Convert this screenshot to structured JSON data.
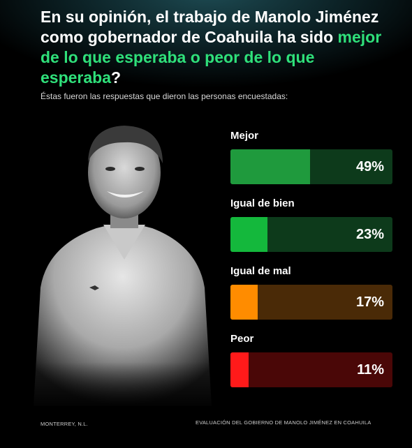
{
  "headline": {
    "part1": "En su opinión, el trabajo de Manolo Jiménez como gobernador de Coahuila ha sido ",
    "highlight": "mejor de lo que esperaba o peor de lo que esperaba",
    "end": "?"
  },
  "subtitle": "Éstas fueron las respuestas que dieron las personas encuestadas:",
  "footer": {
    "left": "MONTERREY, N.L.",
    "right": "EVALUACIÓN DEL GOBIERNO DE MANOLO JIMÉNEZ EN COAHUILA"
  },
  "colors": {
    "headline_highlight": "#2fe07a",
    "background": "#000000"
  },
  "chart_data": {
    "type": "bar",
    "orientation": "horizontal",
    "categories": [
      "Mejor",
      "Igual de bien",
      "Igual de mal",
      "Peor"
    ],
    "values": [
      49,
      23,
      17,
      11
    ],
    "value_labels": [
      "49%",
      "23%",
      "17%",
      "11%"
    ],
    "unit": "%",
    "xlim": [
      0,
      100
    ],
    "grid": false,
    "fill_colors": [
      "#1f9a3d",
      "#14b83c",
      "#ff8c00",
      "#ff1a1a"
    ],
    "track_colors": [
      "#0d3a1b",
      "#0d3a1b",
      "#4a2a07",
      "#4a0707"
    ]
  }
}
